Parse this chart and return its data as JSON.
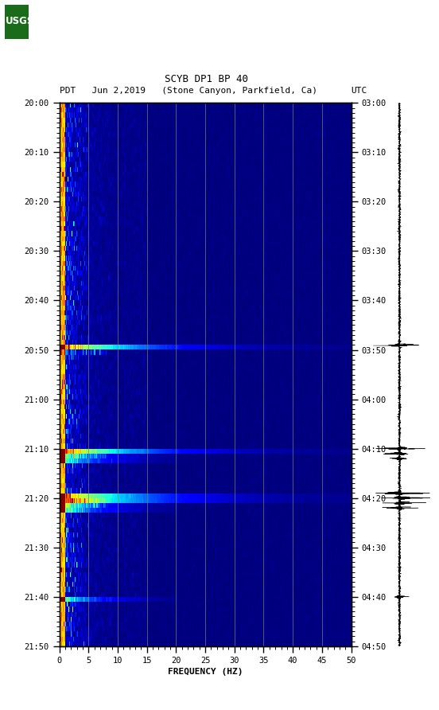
{
  "title_line1": "SCYB DP1 BP 40",
  "title_line2_left": "PDT   Jun 2,2019   (Stone Canyon, Parkfield, Ca)",
  "title_line2_right": "UTC",
  "left_time_labels": [
    "20:00",
    "20:10",
    "20:20",
    "20:30",
    "20:40",
    "20:50",
    "21:00",
    "21:10",
    "21:20",
    "21:30",
    "21:40",
    "21:50"
  ],
  "right_time_labels": [
    "03:00",
    "03:10",
    "03:20",
    "03:30",
    "03:40",
    "03:50",
    "04:00",
    "04:10",
    "04:20",
    "04:30",
    "04:40",
    "04:50"
  ],
  "freq_ticks": [
    0,
    5,
    10,
    15,
    20,
    25,
    30,
    35,
    40,
    45,
    50
  ],
  "xlabel": "FREQUENCY (HZ)",
  "freq_min": 0,
  "freq_max": 50,
  "time_steps": 110,
  "freq_bins": 500,
  "background_color": "#ffffff",
  "colormap": "jet",
  "grid_freq_lines": [
    5,
    10,
    15,
    20,
    25,
    30,
    35,
    40,
    45
  ],
  "event_times_large": [
    49,
    70,
    79,
    80
  ],
  "event_times_medium": [
    71,
    72,
    81,
    82,
    100
  ],
  "usgs_green": "#1a6b1a"
}
